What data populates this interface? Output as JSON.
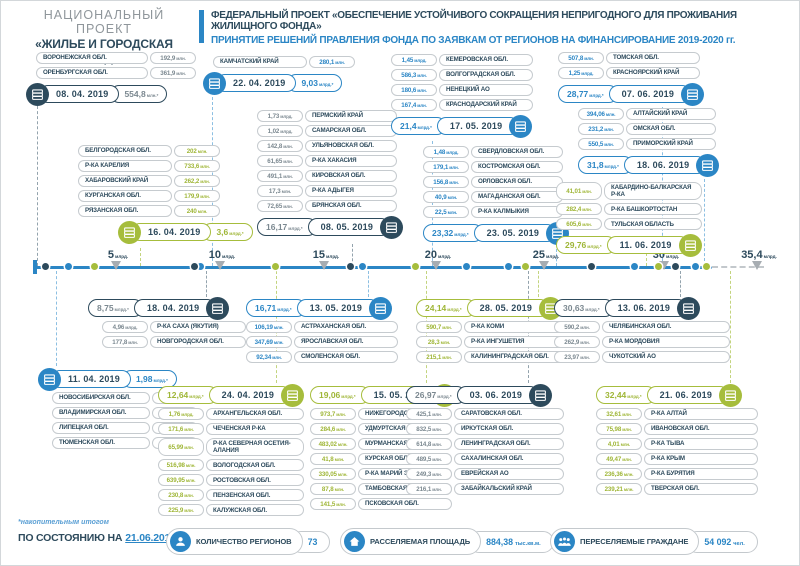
{
  "header": {
    "national_project_line1": "НАЦИОНАЛЬНЫЙ ПРОЕКТ",
    "national_project_line2": "«ЖИЛЬЕ И ГОРОДСКАЯ СРЕДА»",
    "federal_project": "ФЕДЕРАЛЬНЫЙ ПРОЕКТ «ОБЕСПЕЧЕНИЕ УСТОЙЧИВОГО СОКРАЩЕНИЯ НЕПРИГОДНОГО ДЛЯ ПРОЖИВАНИЯ ЖИЛИЩНОГО ФОНДА»",
    "subtitle": "ПРИНЯТИЕ РЕШЕНИЙ ПРАВЛЕНИЯ ФОНДА ПО ЗАЯВКАМ ОТ РЕГИОНОВ НА ФИНАНСИРОВАНИЕ 2019-2020 гг."
  },
  "colors": {
    "dark": "#2d4a5c",
    "blue": "#2b86c5",
    "green": "#a6bd3c"
  },
  "axis": {
    "ticks": [
      {
        "num": "5",
        "unit": "млрд.",
        "v": 5
      },
      {
        "num": "10",
        "unit": "млрд.",
        "v": 10
      },
      {
        "num": "15",
        "unit": "млрд.",
        "v": 15
      },
      {
        "num": "20",
        "unit": "млрд.",
        "v": 20
      },
      {
        "num": "25",
        "unit": "млрд.",
        "v": 25
      },
      {
        "num": "30",
        "unit": "млрд.",
        "v": 30
      },
      {
        "num": "35,4",
        "unit": "млрд.",
        "v": 35.4
      }
    ]
  },
  "groups": [
    {
      "date": "08. 04. 2019",
      "total": "554,8 млн.*",
      "total_bln": 0.55,
      "color": "dark",
      "side": "above",
      "circle": "left",
      "order": "name-first",
      "regions": [
        {
          "name": "ВОРОНЕЖСКАЯ ОБЛ.",
          "value": "192,9 млн."
        },
        {
          "name": "ОРЕНБУРГСКАЯ ОБЛ.",
          "value": "361,9 млн."
        }
      ]
    },
    {
      "date": "16. 04. 2019",
      "total": "3,6 млрд.*",
      "total_bln": 3.6,
      "color": "green",
      "side": "above",
      "circle": "left",
      "order": "name-first",
      "regions": [
        {
          "name": "БЕЛГОРОДСКАЯ ОБЛ.",
          "value": "202 млн."
        },
        {
          "name": "Р-КА КАРЕЛИЯ",
          "value": "733,6 млн."
        },
        {
          "name": "ХАБАРОВСКИЙ КРАЙ",
          "value": "262,2 млн."
        },
        {
          "name": "КУРГАНСКАЯ ОБЛ.",
          "value": "179,9 млн."
        },
        {
          "name": "РЯЗАНСКАЯ ОБЛ.",
          "value": "240 млн."
        }
      ]
    },
    {
      "date": "22. 04. 2019",
      "total": "9,03 млрд.*",
      "total_bln": 9.03,
      "color": "blue",
      "side": "above",
      "circle": "left",
      "order": "name-first",
      "regions": [
        {
          "name": "КАМЧАТСКИЙ КРАЙ",
          "value": "280,1 млн."
        }
      ]
    },
    {
      "date": "08. 05. 2019",
      "total": "16,17 млрд.*",
      "total_bln": 16.17,
      "color": "dark",
      "side": "above",
      "circle": "right",
      "order": "value-first",
      "regions": [
        {
          "name": "ПЕРМСКИЙ КРАЙ",
          "value": "1,73 млрд."
        },
        {
          "name": "САМАРСКАЯ ОБЛ.",
          "value": "1,02 млрд."
        },
        {
          "name": "УЛЬЯНОВСКАЯ ОБЛ.",
          "value": "142,8 млн."
        },
        {
          "name": "Р-КА ХАКАСИЯ",
          "value": "61,65 млн."
        },
        {
          "name": "КИРОВСКАЯ ОБЛ.",
          "value": "491,1 млн."
        },
        {
          "name": "Р-КА АДЫГЕЯ",
          "value": "17,3 млн."
        },
        {
          "name": "БРЯНСКАЯ ОБЛ.",
          "value": "72,65 млн."
        }
      ]
    },
    {
      "date": "17. 05. 2019",
      "total": "21,4 млрд.*",
      "total_bln": 21.4,
      "color": "blue",
      "side": "above",
      "circle": "right",
      "order": "value-first",
      "regions": [
        {
          "name": "КЕМЕРОВСКАЯ ОБЛ.",
          "value": "1,45 млрд."
        },
        {
          "name": "ВОЛГОГРАДСКАЯ ОБЛ.",
          "value": "586,3 млн."
        },
        {
          "name": "НЕНЕЦКИЙ АО",
          "value": "180,6 млн."
        },
        {
          "name": "КРАСНОДАРСКИЙ КРАЙ",
          "value": "167,4 млн."
        }
      ]
    },
    {
      "date": "23. 05. 2019",
      "total": "23,32 млрд.*",
      "total_bln": 23.32,
      "color": "blue",
      "side": "above",
      "circle": "right",
      "order": "value-first",
      "regions": [
        {
          "name": "СВЕРДЛОВСКАЯ ОБЛ.",
          "value": "1,48 млрд."
        },
        {
          "name": "КОСТРОМСКАЯ ОБЛ.",
          "value": "179,1 млн."
        },
        {
          "name": "ОРЛОВСКАЯ ОБЛ.",
          "value": "156,8 млн."
        },
        {
          "name": "МАГАДАНСКАЯ ОБЛ.",
          "value": "40,9 млн."
        },
        {
          "name": "Р-КА КАЛМЫКИЯ",
          "value": "22,5 млн."
        }
      ]
    },
    {
      "date": "07. 06. 2019",
      "total": "28,77 млрд.*",
      "total_bln": 28.77,
      "color": "blue",
      "side": "above",
      "circle": "right",
      "order": "value-first",
      "regions": [
        {
          "name": "ТОМСКАЯ ОБЛ.",
          "value": "507,8 млн."
        },
        {
          "name": "КРАСНОЯРСКИЙ КРАЙ",
          "value": "1,25 млрд."
        }
      ]
    },
    {
      "date": "18. 06. 2019",
      "total": "31,8 млрд.*",
      "total_bln": 31.8,
      "color": "blue",
      "side": "above",
      "circle": "right",
      "order": "value-first",
      "regions": [
        {
          "name": "АЛТАЙСКИЙ КРАЙ",
          "value": "394,06 млн."
        },
        {
          "name": "ОМСКАЯ ОБЛ.",
          "value": "231,2 млн."
        },
        {
          "name": "ПРИМОРСКИЙ КРАЙ",
          "value": "550,5 млн."
        }
      ]
    },
    {
      "date": "11. 06. 2019",
      "total": "29,76 млрд.*",
      "total_bln": 29.76,
      "color": "green",
      "side": "above",
      "circle": "right",
      "order": "value-first",
      "regions": [
        {
          "name": "КАБАРДИНО-БАЛКАРСКАЯ Р-КА",
          "value": "41,01 млн."
        },
        {
          "name": "Р-КА БАШКОРТОСТАН",
          "value": "282,4 млн."
        },
        {
          "name": "ТУЛЬСКАЯ ОБЛАСТЬ",
          "value": "605,6 млн."
        }
      ]
    },
    {
      "date": "18. 04. 2019",
      "total": "8,75 млрд.*",
      "total_bln": 8.75,
      "color": "dark",
      "side": "below",
      "circle": "right",
      "order": "value-first",
      "regions": [
        {
          "name": "Р-КА САХА (ЯКУТИЯ)",
          "value": "4,96 млрд."
        },
        {
          "name": "НОВГОРОДСКАЯ ОБЛ.",
          "value": "177,8 млн."
        }
      ]
    },
    {
      "date": "11. 04. 2019",
      "total": "1,98 млрд.*",
      "total_bln": 1.98,
      "color": "blue",
      "side": "below",
      "circle": "left",
      "order": "name-first",
      "regions": [
        {
          "name": "НОВОСИБИРСКАЯ ОБЛ.",
          "value": "491,7 млн."
        },
        {
          "name": "ВЛАДИМИРСКАЯ ОБЛ.",
          "value": "382,4 млн."
        },
        {
          "name": "ЛИПЕЦКАЯ ОБЛ.",
          "value": "326,1 млн."
        },
        {
          "name": "ТЮМЕНСКАЯ ОБЛ.",
          "value": "227,6 млн."
        }
      ]
    },
    {
      "date": "24. 04. 2019",
      "total": "12,64 млрд.*",
      "total_bln": 12.64,
      "color": "green",
      "side": "below",
      "circle": "right",
      "order": "value-first",
      "regions": [
        {
          "name": "АРХАНГЕЛЬСКАЯ ОБЛ.",
          "value": "1,76 млрд."
        },
        {
          "name": "ЧЕЧЕНСКАЯ Р-КА",
          "value": "171,6 млн."
        },
        {
          "name": "Р-КА СЕВЕРНАЯ ОСЕТИЯ-АЛАНИЯ",
          "value": "65,99 млн."
        },
        {
          "name": "ВОЛОГОДСКАЯ ОБЛ.",
          "value": "516,98 млн."
        },
        {
          "name": "РОСТОВСКАЯ ОБЛ.",
          "value": "639,95 млн."
        },
        {
          "name": "ПЕНЗЕНСКАЯ ОБЛ.",
          "value": "230,8 млн."
        },
        {
          "name": "КАЛУЖСКАЯ ОБЛ.",
          "value": "225,9 млн."
        }
      ]
    },
    {
      "date": "13. 05. 2019",
      "total": "16,71 млрд.*",
      "total_bln": 16.71,
      "color": "blue",
      "side": "below",
      "circle": "right",
      "order": "value-first",
      "regions": [
        {
          "name": "АСТРАХАНСКАЯ ОБЛ.",
          "value": "106,19 млн."
        },
        {
          "name": "ЯРОСЛАВСКАЯ ОБЛ.",
          "value": "347,69 млн."
        },
        {
          "name": "СМОЛЕНСКАЯ ОБЛ.",
          "value": "92,34 млн."
        }
      ]
    },
    {
      "date": "15. 05. 2019",
      "total": "19,06 млрд.*",
      "total_bln": 19.06,
      "color": "green",
      "side": "below",
      "circle": "right",
      "order": "value-first",
      "regions": [
        {
          "name": "НИЖЕГОРОДСКАЯ ОБЛ.",
          "value": "973,7 млн."
        },
        {
          "name": "УДМУРТСКАЯ Р-КА",
          "value": "284,6 млн."
        },
        {
          "name": "МУРМАНСКАЯ ОБЛ.",
          "value": "483,02 млн."
        },
        {
          "name": "КУРСКАЯ ОБЛ.",
          "value": "41,8 млн."
        },
        {
          "name": "Р-КА МАРИЙ ЭЛ",
          "value": "330,05 млн."
        },
        {
          "name": "ТАМБОВСКАЯ ОБЛ.",
          "value": "87,8 млн."
        },
        {
          "name": "ПСКОВСКАЯ ОБЛ.",
          "value": "141,5 млн."
        }
      ]
    },
    {
      "date": "28. 05. 2019",
      "total": "24,14 млрд.*",
      "total_bln": 24.14,
      "color": "green",
      "side": "below",
      "circle": "right",
      "order": "value-first",
      "regions": [
        {
          "name": "Р-КА КОМИ",
          "value": "590,7 млн."
        },
        {
          "name": "Р-КА ИНГУШЕТИЯ",
          "value": "28,3 млн."
        },
        {
          "name": "КАЛИНИНГРАДСКАЯ ОБЛ.",
          "value": "215,1 млн."
        }
      ]
    },
    {
      "date": "03. 06. 2019",
      "total": "26,97 млрд.*",
      "total_bln": 26.97,
      "color": "dark",
      "side": "below",
      "circle": "right",
      "order": "value-first",
      "regions": [
        {
          "name": "САРАТОВСКАЯ ОБЛ.",
          "value": "425,1 млн."
        },
        {
          "name": "ИРКУТСКАЯ ОБЛ.",
          "value": "832,5 млн."
        },
        {
          "name": "ЛЕНИНГРАДСКАЯ ОБЛ.",
          "value": "614,8 млн."
        },
        {
          "name": "САХАЛИНСКАЯ ОБЛ.",
          "value": "489,5 млн."
        },
        {
          "name": "ЕВРЕЙСКАЯ АО",
          "value": "249,3 млн."
        },
        {
          "name": "ЗАБАЙКАЛЬСКИЙ КРАЙ",
          "value": "216,1 млн."
        }
      ]
    },
    {
      "date": "13. 06. 2019",
      "total": "30,63 млрд.*",
      "total_bln": 30.63,
      "color": "dark",
      "side": "below",
      "circle": "right",
      "order": "value-first",
      "regions": [
        {
          "name": "ЧЕЛЯБИНСКАЯ ОБЛ.",
          "value": "590,2 млн."
        },
        {
          "name": "Р-КА МОРДОВИЯ",
          "value": "262,9 млн."
        },
        {
          "name": "ЧУКОТСКИЙ АО",
          "value": "23,97 млн."
        }
      ]
    },
    {
      "date": "21. 06. 2019",
      "total": "32,44 млрд.*",
      "total_bln": 32.44,
      "color": "green",
      "side": "below",
      "circle": "right",
      "order": "value-first",
      "regions": [
        {
          "name": "Р-КА АЛТАЙ",
          "value": "32,61 млн."
        },
        {
          "name": "ИВАНОВСКАЯ ОБЛ.",
          "value": "75,98 млн."
        },
        {
          "name": "Р-КА ТЫВА",
          "value": "4,01 млн."
        },
        {
          "name": "Р-КА КРЫМ",
          "value": "49,47 млн."
        },
        {
          "name": "Р-КА БУРЯТИЯ",
          "value": "236,36 млн."
        },
        {
          "name": "ТВЕРСКАЯ ОБЛ.",
          "value": "239,21 млн."
        }
      ]
    }
  ],
  "footer": {
    "note": "*накопительным итогом",
    "as_of_label": "ПО СОСТОЯНИЮ НА",
    "as_of_date": "21.06.2019",
    "stats": [
      {
        "icon": "person-icon",
        "label": "КОЛИЧЕСТВО РЕГИОНОВ",
        "value": "73",
        "unit": ""
      },
      {
        "icon": "house-icon",
        "label": "РАССЕЛЯЕМАЯ ПЛОЩАДЬ",
        "value": "884,38",
        "unit": "тыс.кв.м."
      },
      {
        "icon": "people-icon",
        "label": "ПЕРЕСЕЛЯЕМЫЕ ГРАЖДАНЕ",
        "value": "54 092",
        "unit": "чел."
      }
    ]
  }
}
